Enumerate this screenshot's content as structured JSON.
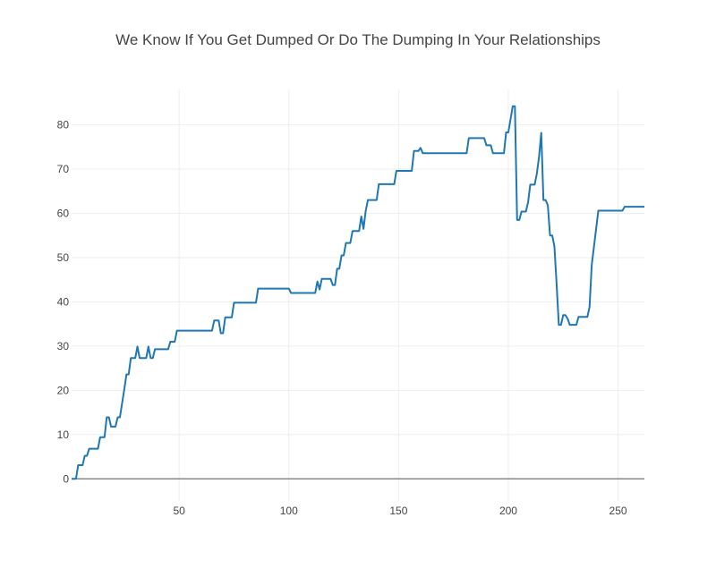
{
  "chart_data": {
    "type": "line",
    "title": "We Know If You Get Dumped Or Do The Dumping In Your Relationships",
    "xlabel": "",
    "ylabel": "",
    "xlim": [
      1,
      262
    ],
    "ylim": [
      -5,
      88
    ],
    "x_ticks": [
      50,
      100,
      150,
      200,
      250
    ],
    "y_ticks": [
      0,
      10,
      20,
      30,
      40,
      50,
      60,
      70,
      80
    ],
    "grid": true,
    "legend": "none",
    "colors": {
      "series": "#1f77b4",
      "grid": "#eeeeee",
      "zero_line": "#888888",
      "text": "#444444"
    },
    "series": [
      {
        "points": [
          [
            1,
            0
          ],
          [
            3,
            0
          ],
          [
            4,
            3.1
          ],
          [
            6,
            3.1
          ],
          [
            7,
            5.2
          ],
          [
            8,
            5.2
          ],
          [
            9,
            6.8
          ],
          [
            13,
            6.8
          ],
          [
            14,
            9.4
          ],
          [
            16,
            9.4
          ],
          [
            17,
            13.9
          ],
          [
            18,
            13.9
          ],
          [
            19,
            11.8
          ],
          [
            21,
            11.8
          ],
          [
            22,
            13.9
          ],
          [
            23,
            13.9
          ],
          [
            25,
            20.2
          ],
          [
            26,
            23.6
          ],
          [
            27,
            23.6
          ],
          [
            28,
            27.3
          ],
          [
            30,
            27.3
          ],
          [
            31,
            29.9
          ],
          [
            32,
            27.3
          ],
          [
            35,
            27.3
          ],
          [
            36,
            29.9
          ],
          [
            37,
            27.3
          ],
          [
            38,
            27.3
          ],
          [
            39,
            29.3
          ],
          [
            45,
            29.3
          ],
          [
            46,
            31
          ],
          [
            48,
            31
          ],
          [
            49,
            33.5
          ],
          [
            65,
            33.5
          ],
          [
            66,
            35.8
          ],
          [
            68,
            35.8
          ],
          [
            69,
            32.9
          ],
          [
            70,
            32.9
          ],
          [
            71,
            36.5
          ],
          [
            74,
            36.5
          ],
          [
            75,
            39.8
          ],
          [
            85,
            39.8
          ],
          [
            86,
            43
          ],
          [
            100,
            43
          ],
          [
            101,
            42
          ],
          [
            112,
            42
          ],
          [
            113,
            44.6
          ],
          [
            114,
            42.8
          ],
          [
            115,
            45.2
          ],
          [
            119,
            45.2
          ],
          [
            120,
            43.8
          ],
          [
            121,
            43.8
          ],
          [
            122,
            47.5
          ],
          [
            123,
            47.5
          ],
          [
            124,
            50.5
          ],
          [
            125,
            50.5
          ],
          [
            126,
            53.3
          ],
          [
            128,
            53.3
          ],
          [
            129,
            56
          ],
          [
            132,
            56
          ],
          [
            133,
            59.3
          ],
          [
            134,
            56.5
          ],
          [
            135,
            60.5
          ],
          [
            136,
            63
          ],
          [
            140,
            63
          ],
          [
            141,
            66.6
          ],
          [
            148,
            66.6
          ],
          [
            149,
            69.6
          ],
          [
            156,
            69.6
          ],
          [
            157,
            74.1
          ],
          [
            159,
            74.1
          ],
          [
            160,
            74.8
          ],
          [
            161,
            73.6
          ],
          [
            181,
            73.6
          ],
          [
            182,
            77
          ],
          [
            189,
            77
          ],
          [
            190,
            75.4
          ],
          [
            192,
            75.4
          ],
          [
            193,
            73.6
          ],
          [
            198,
            73.6
          ],
          [
            199,
            78.3
          ],
          [
            200,
            78.3
          ],
          [
            202,
            84.2
          ],
          [
            203,
            84.2
          ],
          [
            204,
            58.5
          ],
          [
            205,
            58.5
          ],
          [
            206,
            60.4
          ],
          [
            208,
            60.4
          ],
          [
            209,
            62.5
          ],
          [
            210,
            66.5
          ],
          [
            212,
            66.5
          ],
          [
            213,
            69
          ],
          [
            214,
            72.8
          ],
          [
            215,
            78.2
          ],
          [
            216,
            63
          ],
          [
            217,
            63
          ],
          [
            218,
            61.8
          ],
          [
            219,
            55
          ],
          [
            220,
            55
          ],
          [
            221,
            52.5
          ],
          [
            222,
            44
          ],
          [
            223,
            34.8
          ],
          [
            224,
            34.8
          ],
          [
            225,
            37
          ],
          [
            226,
            37
          ],
          [
            227,
            36.2
          ],
          [
            228,
            34.8
          ],
          [
            231,
            34.8
          ],
          [
            232,
            36.6
          ],
          [
            236,
            36.6
          ],
          [
            237,
            38.8
          ],
          [
            238,
            48.3
          ],
          [
            241,
            60.6
          ],
          [
            252,
            60.6
          ],
          [
            253,
            61.5
          ],
          [
            262,
            61.5
          ]
        ]
      }
    ]
  }
}
